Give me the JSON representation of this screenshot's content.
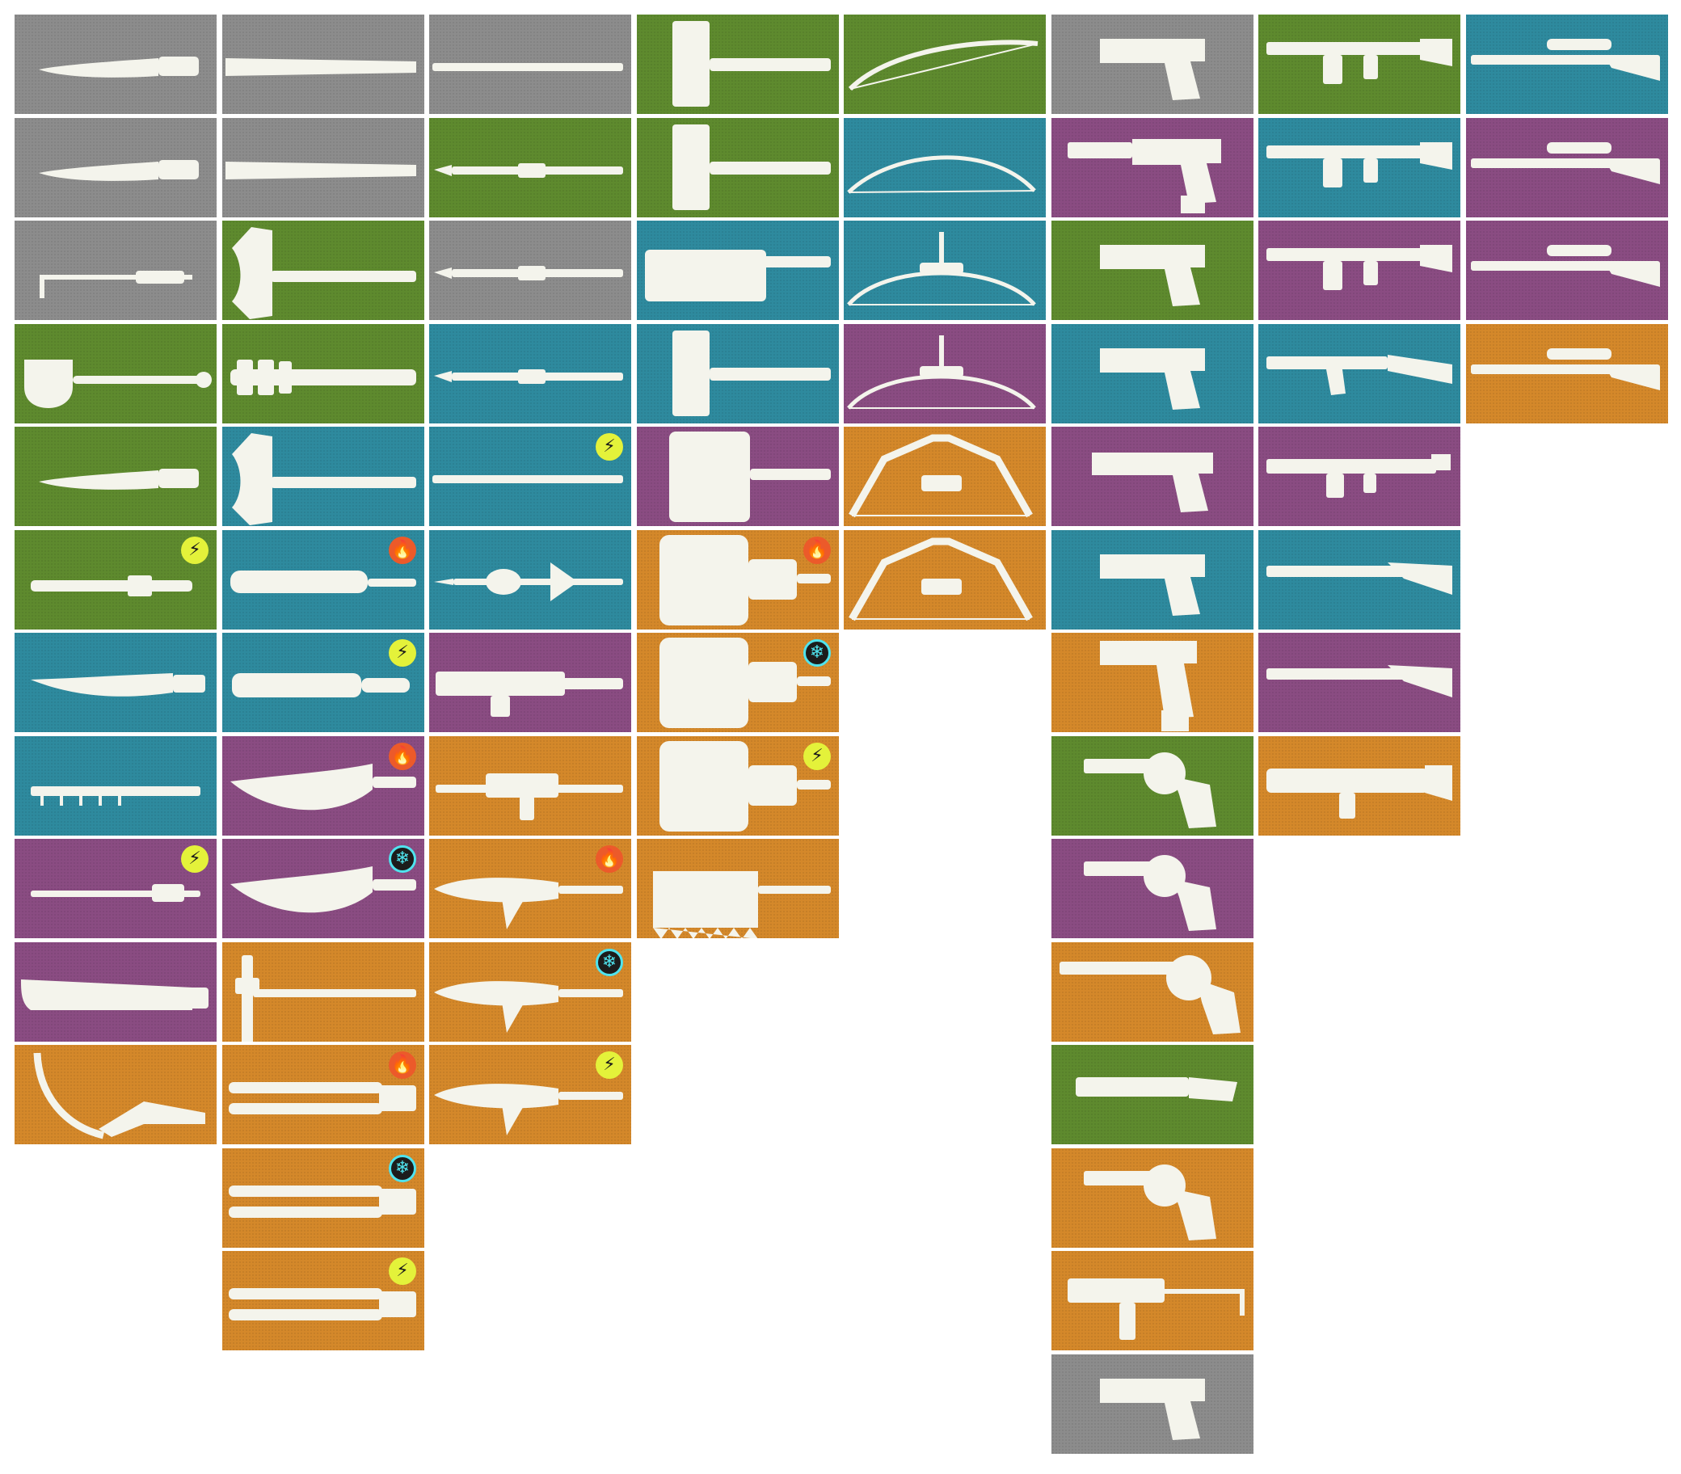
{
  "colors": {
    "common": "#8c8c8c",
    "uncommon": "#5e8a2e",
    "rare": "#2e8a9e",
    "epic": "#8a4c82",
    "legendary": "#d4882a",
    "icon": "#f4f4ec"
  },
  "badge_glyphs": {
    "shock": "⚡",
    "fire": "🔥",
    "freeze": "❄"
  },
  "columns": [
    {
      "category": "knives",
      "items": [
        {
          "rarity": "common",
          "icon": "knife"
        },
        {
          "rarity": "common",
          "icon": "knife"
        },
        {
          "rarity": "common",
          "icon": "crowbar-knife"
        },
        {
          "rarity": "uncommon",
          "icon": "shovel"
        },
        {
          "rarity": "uncommon",
          "icon": "knife"
        },
        {
          "rarity": "uncommon",
          "icon": "baton",
          "element": "shock"
        },
        {
          "rarity": "rare",
          "icon": "machete"
        },
        {
          "rarity": "rare",
          "icon": "serrated-knife"
        },
        {
          "rarity": "epic",
          "icon": "stun-rod",
          "element": "shock"
        },
        {
          "rarity": "epic",
          "icon": "cleaver"
        },
        {
          "rarity": "legendary",
          "icon": "scythe-blade"
        }
      ]
    },
    {
      "category": "clubs-axes",
      "items": [
        {
          "rarity": "common",
          "icon": "bat"
        },
        {
          "rarity": "common",
          "icon": "bat"
        },
        {
          "rarity": "uncommon",
          "icon": "axe"
        },
        {
          "rarity": "uncommon",
          "icon": "spiked-club"
        },
        {
          "rarity": "rare",
          "icon": "axe"
        },
        {
          "rarity": "rare",
          "icon": "wrapped-club",
          "element": "fire"
        },
        {
          "rarity": "rare",
          "icon": "coil-club",
          "element": "shock"
        },
        {
          "rarity": "epic",
          "icon": "kukri",
          "element": "fire"
        },
        {
          "rarity": "epic",
          "icon": "kukri",
          "element": "freeze"
        },
        {
          "rarity": "legendary",
          "icon": "pick-staff"
        },
        {
          "rarity": "legendary",
          "icon": "twin-blade",
          "element": "fire"
        },
        {
          "rarity": "legendary",
          "icon": "twin-blade",
          "element": "freeze"
        },
        {
          "rarity": "legendary",
          "icon": "twin-blade",
          "element": "shock"
        }
      ]
    },
    {
      "category": "spears",
      "items": [
        {
          "rarity": "common",
          "icon": "staff"
        },
        {
          "rarity": "uncommon",
          "icon": "spear"
        },
        {
          "rarity": "common",
          "icon": "spear"
        },
        {
          "rarity": "rare",
          "icon": "spear"
        },
        {
          "rarity": "rare",
          "icon": "staff",
          "element": "shock"
        },
        {
          "rarity": "rare",
          "icon": "mace-spear"
        },
        {
          "rarity": "epic",
          "icon": "drill-spear"
        },
        {
          "rarity": "legendary",
          "icon": "gun-spear"
        },
        {
          "rarity": "legendary",
          "icon": "blade-spear",
          "element": "fire"
        },
        {
          "rarity": "legendary",
          "icon": "blade-spear",
          "element": "freeze"
        },
        {
          "rarity": "legendary",
          "icon": "blade-spear",
          "element": "shock"
        }
      ]
    },
    {
      "category": "hammers",
      "items": [
        {
          "rarity": "uncommon",
          "icon": "sledgehammer"
        },
        {
          "rarity": "uncommon",
          "icon": "sledgehammer"
        },
        {
          "rarity": "rare",
          "icon": "block-hammer"
        },
        {
          "rarity": "rare",
          "icon": "sledgehammer"
        },
        {
          "rarity": "epic",
          "icon": "engine-hammer"
        },
        {
          "rarity": "legendary",
          "icon": "tank-hammer",
          "element": "fire"
        },
        {
          "rarity": "legendary",
          "icon": "tank-hammer",
          "element": "freeze"
        },
        {
          "rarity": "legendary",
          "icon": "tank-hammer",
          "element": "shock"
        },
        {
          "rarity": "legendary",
          "icon": "spiked-hammer"
        }
      ]
    },
    {
      "category": "bows",
      "items": [
        {
          "rarity": "uncommon",
          "icon": "longbow"
        },
        {
          "rarity": "rare",
          "icon": "recurve-bow"
        },
        {
          "rarity": "rare",
          "icon": "sight-bow"
        },
        {
          "rarity": "epic",
          "icon": "sight-bow"
        },
        {
          "rarity": "legendary",
          "icon": "compound-bow"
        },
        {
          "rarity": "legendary",
          "icon": "compound-bow"
        }
      ]
    },
    {
      "category": "pistols",
      "items": [
        {
          "rarity": "common",
          "icon": "pistol"
        },
        {
          "rarity": "epic",
          "icon": "suppressed-pistol"
        },
        {
          "rarity": "uncommon",
          "icon": "pistol"
        },
        {
          "rarity": "rare",
          "icon": "pistol"
        },
        {
          "rarity": "epic",
          "icon": "long-pistol"
        },
        {
          "rarity": "rare",
          "icon": "pistol"
        },
        {
          "rarity": "legendary",
          "icon": "extended-pistol"
        },
        {
          "rarity": "uncommon",
          "icon": "revolver"
        },
        {
          "rarity": "epic",
          "icon": "revolver"
        },
        {
          "rarity": "legendary",
          "icon": "long-revolver"
        },
        {
          "rarity": "uncommon",
          "icon": "sawed-off"
        },
        {
          "rarity": "legendary",
          "icon": "revolver"
        },
        {
          "rarity": "legendary",
          "icon": "smg"
        },
        {
          "rarity": "common",
          "icon": "pistol"
        }
      ]
    },
    {
      "category": "rifles",
      "items": [
        {
          "rarity": "uncommon",
          "icon": "assault-rifle"
        },
        {
          "rarity": "rare",
          "icon": "assault-rifle"
        },
        {
          "rarity": "epic",
          "icon": "assault-rifle"
        },
        {
          "rarity": "rare",
          "icon": "ak-rifle"
        },
        {
          "rarity": "epic",
          "icon": "carbine"
        },
        {
          "rarity": "rare",
          "icon": "shotgun"
        },
        {
          "rarity": "epic",
          "icon": "shotgun"
        },
        {
          "rarity": "legendary",
          "icon": "grenade-launcher"
        }
      ]
    },
    {
      "category": "snipers",
      "items": [
        {
          "rarity": "rare",
          "icon": "sniper"
        },
        {
          "rarity": "epic",
          "icon": "sniper"
        },
        {
          "rarity": "epic",
          "icon": "sniper"
        },
        {
          "rarity": "legendary",
          "icon": "sniper"
        }
      ]
    }
  ]
}
